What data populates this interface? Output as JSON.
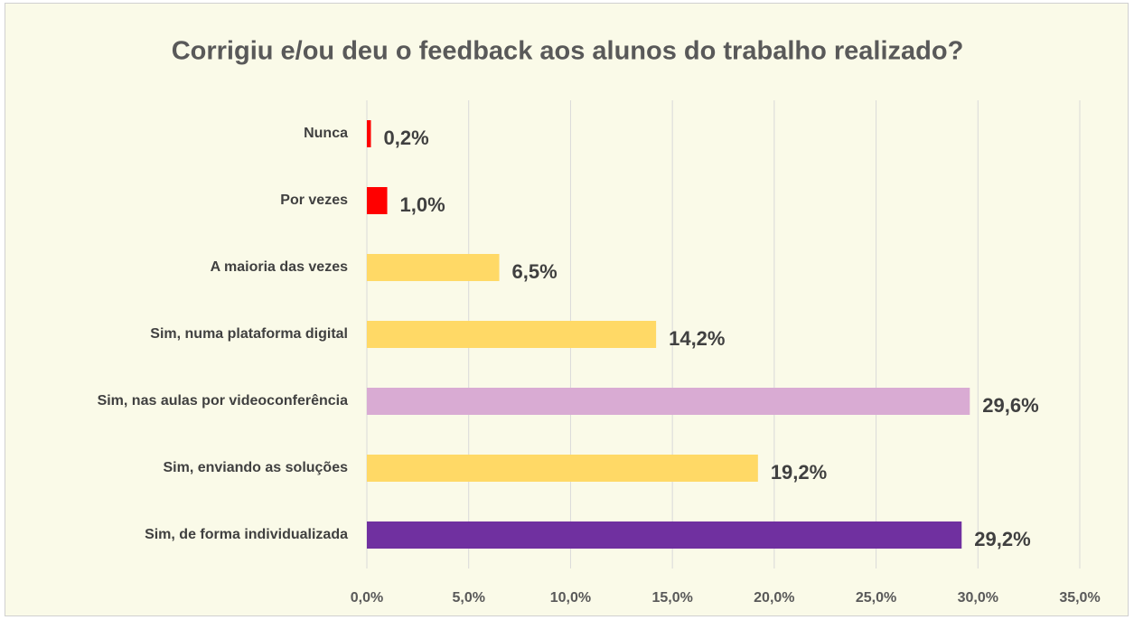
{
  "chart_data": {
    "type": "hbar",
    "title": "Corrigiu e/ou deu o feedback aos alunos do trabalho realizado?",
    "categories": [
      "Nunca",
      "Por vezes",
      "A maioria das vezes",
      "Sim, numa plataforma digital",
      "Sim, nas aulas por videoconferência",
      "Sim, enviando as soluções",
      "Sim, de forma individualizada"
    ],
    "values": [
      0.2,
      1.0,
      6.5,
      14.2,
      29.6,
      19.2,
      29.2
    ],
    "value_labels": [
      "0,2%",
      "1,0%",
      "6,5%",
      "14,2%",
      "29,6%",
      "19,2%",
      "29,2%"
    ],
    "colors": [
      "#ff0000",
      "#ff0000",
      "#ffd966",
      "#ffd966",
      "#d9abd3",
      "#ffd966",
      "#7030a0"
    ],
    "xlim": [
      0,
      35
    ],
    "xticks": [
      {
        "value": 0,
        "label": "0,0%"
      },
      {
        "value": 5,
        "label": "5,0%"
      },
      {
        "value": 10,
        "label": "10,0%"
      },
      {
        "value": 15,
        "label": "15,0%"
      },
      {
        "value": 20,
        "label": "20,0%"
      },
      {
        "value": 25,
        "label": "25,0%"
      },
      {
        "value": 30,
        "label": "30,0%"
      },
      {
        "value": 35,
        "label": "35,0%"
      }
    ],
    "grid": true
  }
}
